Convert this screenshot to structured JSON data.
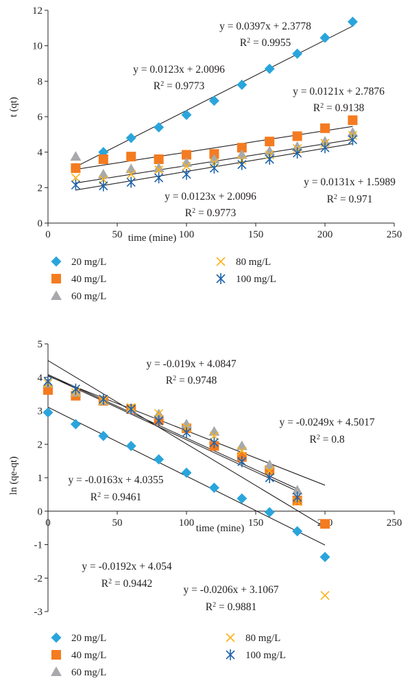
{
  "colors": {
    "s20": "#2aa5dc",
    "s40": "#f47b20",
    "s60": "#a7a9ac",
    "s80": "#fbb216",
    "s100": "#1f63a8",
    "axis": "#231f20",
    "fit": "#231f20"
  },
  "chart_data": [
    {
      "type": "scatter",
      "xlabel": "time (mine)",
      "ylabel": "t (qt)",
      "xlim": [
        0,
        250
      ],
      "ylim": [
        0,
        12
      ],
      "xticks": [
        0,
        50,
        100,
        150,
        200,
        250
      ],
      "yticks": [
        0,
        2,
        4,
        6,
        8,
        10,
        12
      ],
      "grid": false,
      "legend_position": "bottom",
      "series": [
        {
          "name": "20 mg/L",
          "marker": "diamond",
          "color_key": "s20",
          "x": [
            20,
            40,
            60,
            80,
            100,
            120,
            140,
            160,
            180,
            200,
            220
          ],
          "y": [
            3.1,
            4.0,
            4.8,
            5.4,
            6.1,
            6.9,
            7.8,
            8.7,
            9.55,
            10.45,
            11.35
          ]
        },
        {
          "name": "40 mg/L",
          "marker": "square",
          "color_key": "s40",
          "x": [
            20,
            40,
            60,
            80,
            100,
            120,
            140,
            160,
            180,
            200,
            220
          ],
          "y": [
            3.1,
            3.6,
            3.75,
            3.6,
            3.85,
            3.9,
            4.25,
            4.6,
            4.9,
            5.35,
            5.8
          ]
        },
        {
          "name": "60 mg/L",
          "marker": "triangle",
          "color_key": "s60",
          "x": [
            20,
            40,
            60,
            80,
            100,
            120,
            140,
            160,
            180,
            200,
            220
          ],
          "y": [
            3.75,
            2.75,
            3.05,
            3.1,
            3.4,
            3.6,
            3.85,
            4.05,
            4.3,
            4.6,
            5.1
          ]
        },
        {
          "name": "80 mg/L",
          "marker": "x",
          "color_key": "s80",
          "x": [
            20,
            40,
            60,
            80,
            100,
            120,
            140,
            160,
            180,
            200,
            220
          ],
          "y": [
            2.55,
            2.45,
            2.75,
            3.0,
            3.2,
            3.4,
            3.55,
            3.85,
            4.2,
            4.5,
            4.95
          ]
        },
        {
          "name": "100 mg/L",
          "marker": "star",
          "color_key": "s100",
          "x": [
            20,
            40,
            60,
            80,
            100,
            120,
            140,
            160,
            180,
            200,
            220
          ],
          "y": [
            2.15,
            2.1,
            2.3,
            2.55,
            2.75,
            3.1,
            3.3,
            3.6,
            3.95,
            4.25,
            4.7
          ]
        }
      ],
      "fit_lines": [
        {
          "slope": 0.0397,
          "intercept": 2.3778,
          "x_range": [
            20,
            220
          ]
        },
        {
          "slope": 0.0121,
          "intercept": 2.7876,
          "x_range": [
            20,
            220
          ]
        },
        {
          "slope": 0.0123,
          "intercept": 2.0096,
          "x_range": [
            20,
            220
          ]
        },
        {
          "slope": 0.0131,
          "intercept": 1.5989,
          "x_range": [
            20,
            220
          ]
        }
      ],
      "annotations": [
        {
          "eq": "y = 0.0397x + 2.3778",
          "r2_value": "= 0.9955"
        },
        {
          "eq": "y = 0.0123x + 2.0096",
          "r2_value": "= 0.9773"
        },
        {
          "eq": "y = 0.0121x + 2.7876",
          "r2_value": "= 0.9138"
        },
        {
          "eq": "y = 0.0131x + 1.5989",
          "r2_value": "= 0.971"
        },
        {
          "eq": "y = 0.0123x + 2.0096",
          "r2_value": "= 0.9773"
        }
      ]
    },
    {
      "type": "scatter",
      "xlabel": "time (mine)",
      "ylabel": "ln (qe-qt)",
      "xlim": [
        0,
        250
      ],
      "ylim": [
        -3,
        5
      ],
      "xticks": [
        0,
        50,
        100,
        150,
        200,
        250
      ],
      "yticks": [
        -3,
        -2,
        -1,
        0,
        1,
        2,
        3,
        4,
        5
      ],
      "grid": false,
      "legend_position": "bottom",
      "series": [
        {
          "name": "20 mg/L",
          "marker": "diamond",
          "color_key": "s20",
          "x": [
            0,
            20,
            40,
            60,
            80,
            100,
            120,
            140,
            160,
            180,
            200
          ],
          "y": [
            2.95,
            2.6,
            2.25,
            1.95,
            1.55,
            1.15,
            0.7,
            0.38,
            -0.03,
            -0.6,
            -1.37
          ]
        },
        {
          "name": "40 mg/L",
          "marker": "square",
          "color_key": "s40",
          "x": [
            0,
            20,
            40,
            60,
            80,
            100,
            120,
            140,
            160,
            180,
            200
          ],
          "y": [
            3.62,
            3.45,
            3.3,
            3.05,
            2.72,
            2.48,
            1.95,
            1.62,
            1.22,
            0.32,
            -0.38
          ]
        },
        {
          "name": "60 mg/L",
          "marker": "triangle",
          "color_key": "s60",
          "x": [
            0,
            20,
            40,
            60,
            80,
            100,
            120,
            140,
            160,
            180
          ],
          "y": [
            3.82,
            3.55,
            3.3,
            3.05,
            2.9,
            2.6,
            2.38,
            1.95,
            1.38,
            0.62
          ]
        },
        {
          "name": "80 mg/L",
          "marker": "x",
          "color_key": "s80",
          "x": [
            0,
            20,
            40,
            60,
            80,
            100,
            120,
            140,
            160,
            180,
            200
          ],
          "y": [
            3.82,
            3.55,
            3.3,
            3.1,
            2.92,
            2.5,
            2.25,
            1.8,
            1.2,
            0.28,
            -2.52
          ]
        },
        {
          "name": "100 mg/L",
          "marker": "star",
          "color_key": "s100",
          "x": [
            0,
            20,
            40,
            60,
            80,
            100,
            120,
            140,
            160,
            180
          ],
          "y": [
            3.88,
            3.65,
            3.35,
            3.05,
            2.7,
            2.35,
            2.05,
            1.48,
            1.0,
            0.42
          ]
        }
      ],
      "fit_lines": [
        {
          "slope": -0.019,
          "intercept": 4.0847,
          "x_range": [
            0,
            180
          ]
        },
        {
          "slope": -0.0249,
          "intercept": 4.5017,
          "x_range": [
            0,
            200
          ]
        },
        {
          "slope": -0.0163,
          "intercept": 4.0355,
          "x_range": [
            0,
            200
          ]
        },
        {
          "slope": -0.0192,
          "intercept": 4.054,
          "x_range": [
            0,
            180
          ]
        },
        {
          "slope": -0.0206,
          "intercept": 3.1067,
          "x_range": [
            0,
            200
          ]
        }
      ],
      "annotations": [
        {
          "eq": "y = -0.019x + 4.0847",
          "r2_value": "= 0.9748"
        },
        {
          "eq": "y = -0.0249x + 4.5017",
          "r2_value": "= 0.8"
        },
        {
          "eq": "y = -0.0163x + 4.0355",
          "r2_value": "= 0.9461"
        },
        {
          "eq": "y = -0.0192x + 4.054",
          "r2_value": "= 0.9442"
        },
        {
          "eq": "y = -0.0206x + 3.1067",
          "r2_value": "= 0.9881"
        }
      ]
    }
  ]
}
